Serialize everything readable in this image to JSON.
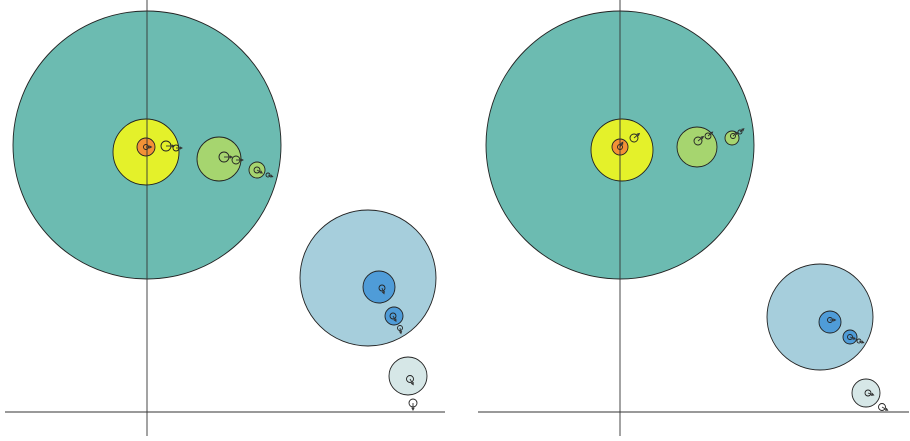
{
  "colors": {
    "background": "#ffffff",
    "teal": "#6cbbb1",
    "yellow": "#e4f12a",
    "orange": "#f39136",
    "light_green": "#a6d56f",
    "light_blue": "#a6cedc",
    "mid_blue": "#4f9cd8",
    "pale_blue": "#d6e7e7",
    "outline": "#222222",
    "axis": "#333333"
  },
  "panels": [
    {
      "id": "left"
    },
    {
      "id": "right"
    }
  ]
}
